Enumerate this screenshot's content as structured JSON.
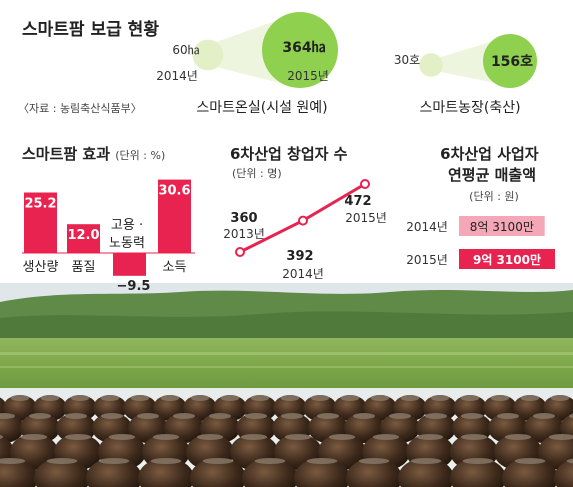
{
  "title": "스마트팜 보급 현황",
  "source": "〈자료 : 농림축산식품부〉",
  "colors": {
    "accent": "#e8234f",
    "bubble_big": "#8fd14f",
    "bubble_small": "#e3efc6",
    "beam": "#eef5df",
    "pink_bar": "#f4a7b6"
  },
  "chart_data": [
    {
      "type": "bubble",
      "title": "스마트온실(시설 원예)",
      "points": [
        {
          "year": "2014년",
          "label": "60㏊",
          "value": 60
        },
        {
          "year": "2015년",
          "label": "364㏊",
          "value": 364
        }
      ]
    },
    {
      "type": "bubble",
      "title": "스마트농장(축산)",
      "points": [
        {
          "label": "30호",
          "value": 30
        },
        {
          "label": "156호",
          "value": 156
        }
      ]
    },
    {
      "type": "bar",
      "title": "스마트팜 효과",
      "unit": "(단위 : %)",
      "categories": [
        "생산량",
        "품질",
        "고용 · 노동력",
        "소득"
      ],
      "values": [
        25.2,
        12.0,
        -9.5,
        30.6
      ],
      "value_labels": [
        "25.2",
        "12.0",
        "−9.5",
        "30.6"
      ]
    },
    {
      "type": "line",
      "title": "6차산업 창업자 수",
      "unit": "(단위 : 명)",
      "x": [
        "2013년",
        "2014년",
        "2015년"
      ],
      "values": [
        360,
        392,
        472
      ]
    },
    {
      "type": "bar",
      "title": "6차산업 사업자 연평균 매출액",
      "unit": "(단위 : 원)",
      "categories": [
        "2014년",
        "2015년"
      ],
      "values": [
        831000000,
        931000000
      ],
      "value_labels": [
        "8억 3100만",
        "9억 3100만"
      ]
    }
  ]
}
